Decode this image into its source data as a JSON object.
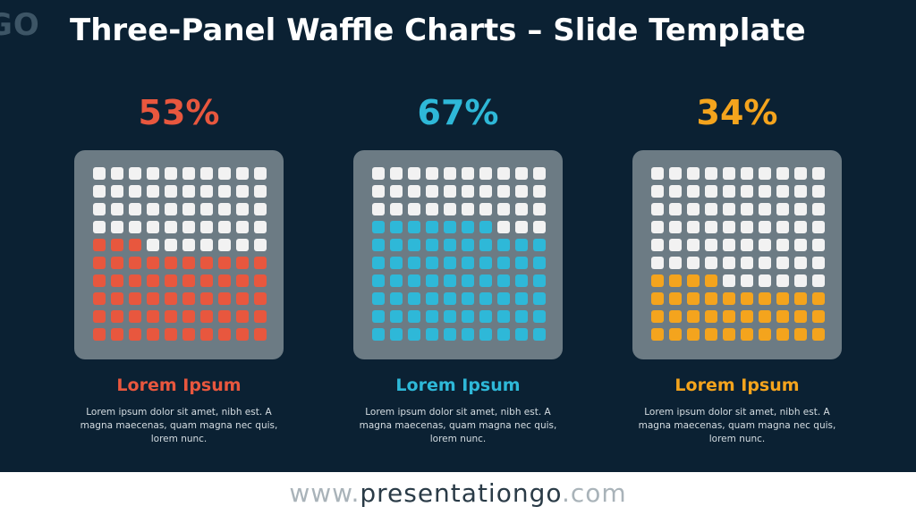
{
  "logo_text": "GO",
  "title": "Three-Panel Waffle Charts – Slide Template",
  "chart_data": [
    {
      "type": "waffle",
      "value": 53,
      "value_label": "53%",
      "total": 100,
      "color": "#e8573e",
      "label": "Lorem Ipsum",
      "description": "Lorem ipsum dolor sit amet, nibh est. A magna maecenas, quam magna nec quis, lorem nunc."
    },
    {
      "type": "waffle",
      "value": 67,
      "value_label": "67%",
      "total": 100,
      "color": "#2eb8d8",
      "label": "Lorem Ipsum",
      "description": "Lorem ipsum dolor sit amet, nibh est. A magna maecenas, quam magna nec quis, lorem nunc."
    },
    {
      "type": "waffle",
      "value": 34,
      "value_label": "34%",
      "total": 100,
      "color": "#f4a41d",
      "label": "Lorem Ipsum",
      "description": "Lorem ipsum dolor sit amet, nibh est. A magna maecenas, quam magna nec quis, lorem nunc."
    }
  ],
  "colors": {
    "background": "#0b2133",
    "panel": "#6c7b84",
    "empty_cell": "#f2f2f2"
  },
  "footer": {
    "prefix": "www.",
    "brand": "presentationgo",
    "suffix": ".com"
  }
}
